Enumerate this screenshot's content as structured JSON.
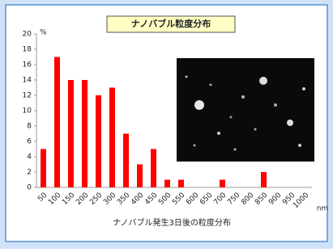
{
  "chart_data": {
    "type": "bar",
    "title": "ナノバブル粒度分布",
    "y_unit": "%",
    "x_unit": "nm",
    "x_label": "ナノバブル発生3日後の粒度分布",
    "categories": [
      "50",
      "100",
      "150",
      "200",
      "250",
      "300",
      "350",
      "400",
      "450",
      "500",
      "550",
      "600",
      "650",
      "700",
      "750",
      "800",
      "850",
      "900",
      "950",
      "1000"
    ],
    "values": [
      5,
      17,
      14,
      14,
      12,
      13,
      7,
      3,
      5,
      1,
      1,
      0,
      0,
      1,
      0,
      0,
      2,
      0,
      0,
      0
    ],
    "color": "#ff0000",
    "ylim": [
      0,
      20
    ],
    "yticks": [
      0,
      2,
      4,
      6,
      8,
      10,
      12,
      14,
      16,
      18,
      20
    ],
    "grid": false
  }
}
